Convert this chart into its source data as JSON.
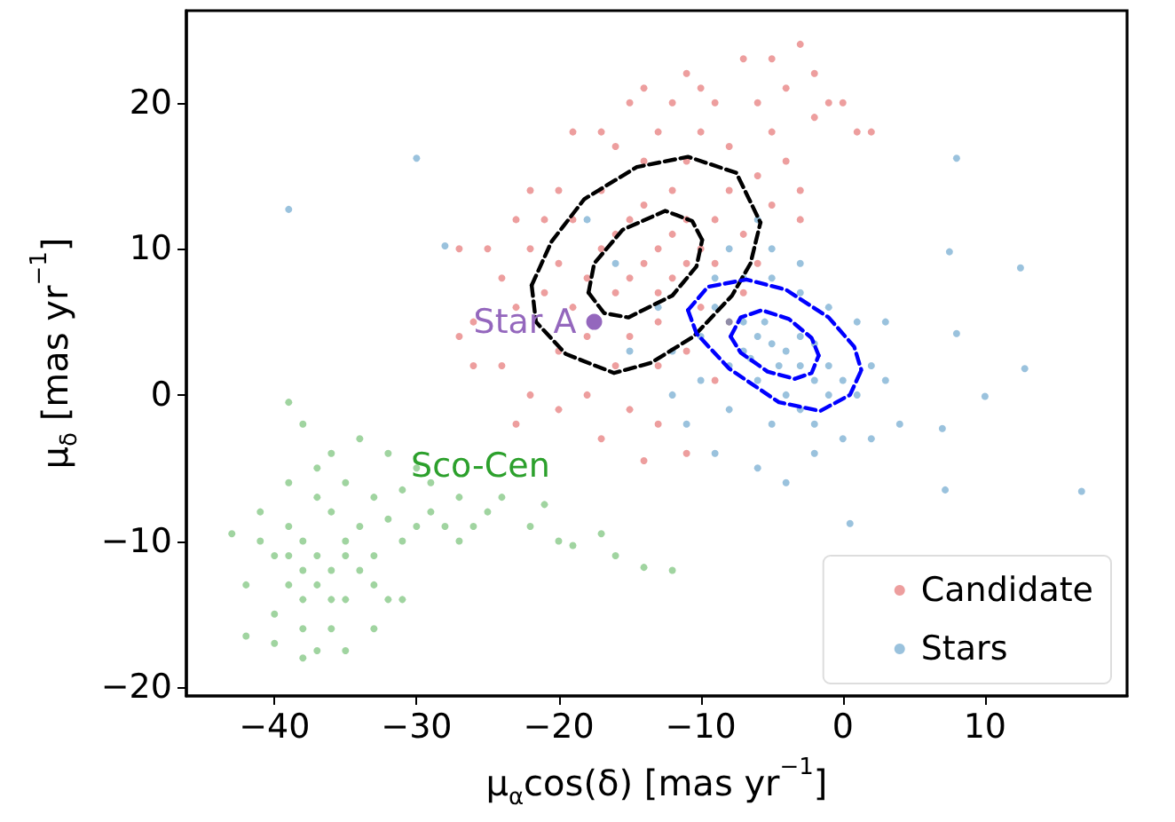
{
  "chart_data": {
    "type": "scatter",
    "xlabel": "μ$_{α}$cos(δ) [mas yr$^{−1}$]",
    "ylabel": "μ$_{δ}$ [mas yr$^{−1}$]",
    "xlim": [
      -46.2,
      20
    ],
    "ylim": [
      -20.6,
      26.3
    ],
    "xticks": [
      -40,
      -30,
      -20,
      -10,
      0,
      10
    ],
    "yticks": [
      -20,
      -10,
      0,
      10,
      20
    ],
    "grid": false,
    "legend": "bottom right",
    "marker": "circle",
    "line_style": "dashed",
    "annotations": [
      "Sco-Cen",
      "Star A"
    ],
    "series": [
      {
        "name": "Candidate",
        "color": "#d62728",
        "x": [
          -14,
          -13,
          -15,
          -12,
          -16,
          -11,
          -17,
          -13,
          -15,
          -12,
          -10,
          -18,
          -14,
          -16,
          -11,
          -13,
          -19,
          -9,
          -15,
          -20,
          -12,
          -8,
          -17,
          -10,
          -21,
          -18,
          -9,
          -14,
          -11,
          -7,
          -22,
          -19,
          -16,
          -13,
          -20,
          -23,
          -24,
          -6,
          -8,
          -10,
          -13,
          -16,
          -20,
          -21,
          -17,
          -12,
          -9,
          -5,
          -4,
          -3,
          -6,
          -4,
          -2,
          -3,
          -1,
          1,
          2,
          -7,
          -14,
          -19,
          -22,
          -25,
          -26,
          -27,
          -24,
          -22,
          -18,
          -15,
          -13,
          -11,
          -14,
          -20,
          -26,
          -23,
          -27,
          -15,
          -11,
          -5,
          -2,
          0,
          -3,
          -5,
          -8,
          -7,
          -6,
          -11,
          -9,
          -17,
          -23,
          -10
        ],
        "values": [
          9,
          10,
          8,
          11,
          7,
          12,
          10,
          7,
          12,
          8,
          10,
          8,
          13,
          11,
          9,
          5,
          6,
          12,
          4,
          9,
          14,
          14,
          14,
          6,
          7,
          4,
          9,
          16,
          16,
          11,
          10,
          12,
          2,
          2,
          3,
          6,
          8,
          15,
          17,
          18,
          18,
          17,
          14,
          12,
          18,
          20,
          20,
          18,
          16,
          14,
          20,
          21,
          22,
          24,
          20,
          18,
          18,
          23,
          21,
          18,
          14,
          10,
          5,
          4,
          2,
          0,
          0,
          -1,
          -2,
          -4,
          -4.5,
          -1,
          2,
          12,
          10,
          20,
          22,
          23,
          19,
          20,
          12,
          13,
          5,
          7,
          9,
          3,
          1,
          -3,
          -2,
          21
        ]
      },
      {
        "name": "Stars",
        "color": "#1f77b4",
        "x": [
          -30,
          -39,
          -28,
          8,
          7.5,
          12.5,
          8,
          12.8,
          10,
          7,
          7.2,
          16.8,
          0.5,
          -5,
          -4,
          -6,
          -3,
          -7,
          -2,
          -4.5,
          -5.5,
          -3,
          -6.5,
          -8,
          -1,
          -2,
          -7,
          -9,
          -4,
          -3,
          -6,
          -8,
          -10,
          -1,
          0,
          1,
          2,
          3,
          -2,
          -5,
          -8,
          -10,
          -12,
          -9,
          -7,
          -5,
          -3,
          -1,
          1,
          3,
          -2,
          -4,
          -6,
          -9,
          0,
          2,
          4,
          -11,
          -12,
          -5,
          -8,
          -3,
          -6,
          -13,
          -15,
          -16,
          -18
        ],
        "values": [
          16.2,
          12.7,
          10.2,
          16.2,
          9.8,
          8.7,
          4.2,
          1.8,
          -0.1,
          -2.3,
          -6.5,
          -6.6,
          -8.8,
          3.5,
          3,
          4,
          2,
          5,
          1,
          2,
          5,
          4,
          2.5,
          5,
          2,
          3.5,
          3,
          6,
          0,
          -1,
          1,
          2,
          4,
          0,
          1,
          0,
          2,
          1,
          -2,
          -2,
          -1,
          1,
          3,
          8,
          8,
          8,
          7,
          6,
          5,
          5,
          -4,
          -6,
          -5,
          -4,
          -3,
          -3,
          -2,
          -2,
          0,
          10,
          10,
          9,
          12,
          6,
          3,
          9,
          12
        ]
      },
      {
        "color": "#2ca02c",
        "x": [
          -37,
          -38,
          -36,
          -39,
          -35,
          -37,
          -40,
          -36,
          -38,
          -34,
          -39,
          -35,
          -41,
          -37,
          -33,
          -38,
          -36,
          -40,
          -42,
          -34,
          -35,
          -39,
          -41,
          -43,
          -42,
          -38,
          -37,
          -35,
          -33,
          -32,
          -36,
          -38,
          -39,
          -34,
          -37,
          -40,
          -33,
          -32,
          -31,
          -30,
          -29,
          -28,
          -27,
          -26,
          -25,
          -27,
          -29,
          -31,
          -32,
          -30,
          -24,
          -21,
          -20,
          -19,
          -17,
          -16,
          -14,
          -12,
          -22,
          -33,
          -31,
          -36,
          -38,
          -39,
          -35
        ],
        "values": [
          -11,
          -10,
          -12,
          -9,
          -10,
          -13,
          -11,
          -8,
          -14,
          -12,
          -13,
          -14,
          -10,
          -7,
          -11,
          -16,
          -16,
          -15,
          -13,
          -9,
          -6,
          -6,
          -8,
          -9.5,
          -16.5,
          -18,
          -17.5,
          -17.5,
          -16,
          -14,
          -4,
          -2,
          -0.5,
          -3,
          -5,
          -17,
          -7,
          -8.5,
          -10,
          -9,
          -8,
          -9,
          -10,
          -9,
          -8,
          -7,
          -6,
          -6.5,
          -4,
          -5,
          -7,
          -7.5,
          -10,
          -10.3,
          -9.5,
          -11,
          -11.8,
          -12,
          -9,
          -13,
          -14,
          -14,
          -12,
          -11,
          -11
        ]
      },
      {
        "color": "#9467bd",
        "x": [
          -17.5
        ],
        "values": [
          5
        ]
      },
      {
        "type": "line",
        "marker": "none",
        "color": "#000000",
        "x": [
          -21.9,
          -20.5,
          -18.2,
          -14.5,
          -10.9,
          -7.5,
          -5.8
        ],
        "values": [
          7.5,
          10.5,
          13.4,
          15.6,
          16.3,
          15.2,
          11.8
        ]
      },
      {
        "type": "line",
        "marker": "none",
        "color": "#000000",
        "x": [
          -21.9,
          -21.6,
          -19.5,
          -16.1,
          -13.5,
          -10.5,
          -7.8,
          -6.5,
          -5.8
        ],
        "values": [
          7.5,
          5,
          2.8,
          1.5,
          2.2,
          4,
          6.8,
          9,
          11.8
        ]
      },
      {
        "type": "line",
        "marker": "none",
        "color": "#000000",
        "x": [
          -17.9,
          -17.5,
          -15.5,
          -12.5,
          -10.6,
          -9.9
        ],
        "values": [
          7,
          9,
          11.3,
          12.6,
          11.9,
          10.6
        ]
      },
      {
        "type": "line",
        "marker": "none",
        "color": "#000000",
        "x": [
          -17.9,
          -16.8,
          -15.1,
          -12,
          -10.3,
          -9.9
        ],
        "values": [
          7,
          5.6,
          5.3,
          6.8,
          8.8,
          10.6
        ]
      },
      {
        "type": "line",
        "marker": "none",
        "color": "#0000ff",
        "x": [
          -10.9,
          -9.5,
          -6.8,
          -4,
          -1,
          0.8,
          1.3
        ],
        "values": [
          5.8,
          7.4,
          7.9,
          7.2,
          5.3,
          3.3,
          1.7
        ]
      },
      {
        "type": "line",
        "marker": "none",
        "color": "#0000ff",
        "x": [
          -10.9,
          -10.3,
          -8,
          -4.5,
          -1.6,
          0.5,
          1.3
        ],
        "values": [
          5.8,
          4.2,
          1.8,
          -0.5,
          -1.1,
          0,
          1.7
        ]
      },
      {
        "type": "line",
        "marker": "none",
        "color": "#0000ff",
        "x": [
          -7.9,
          -7.2,
          -5.7,
          -3.8,
          -2.2,
          -1.7
        ],
        "values": [
          4,
          5.3,
          5.8,
          5.2,
          3.9,
          2.7
        ]
      },
      {
        "type": "line",
        "marker": "none",
        "color": "#0000ff",
        "x": [
          -7.9,
          -7.2,
          -5.3,
          -3.4,
          -2.2,
          -1.7
        ],
        "values": [
          4,
          2.9,
          1.6,
          1.1,
          1.5,
          2.7
        ]
      }
    ]
  }
}
